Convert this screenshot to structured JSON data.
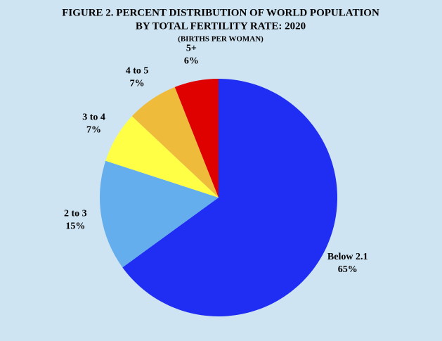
{
  "chart_data": {
    "type": "pie",
    "title": [
      "FIGURE 2. PERCENT DISTRIBUTION OF WORLD POPULATION",
      "BY TOTAL FERTILITY RATE: 2020"
    ],
    "subtitle": "(BIRTHS PER WOMAN)",
    "categories": [
      "Below 2.1",
      "2 to 3",
      "3 to 4",
      "4 to 5",
      "5+"
    ],
    "values": [
      65,
      15,
      7,
      7,
      6
    ],
    "value_labels": [
      "65%",
      "15%",
      "7%",
      "7%",
      "6%"
    ],
    "colors": [
      "#1f2ef2",
      "#64aeee",
      "#ffff45",
      "#efbb3b",
      "#df0000"
    ]
  }
}
